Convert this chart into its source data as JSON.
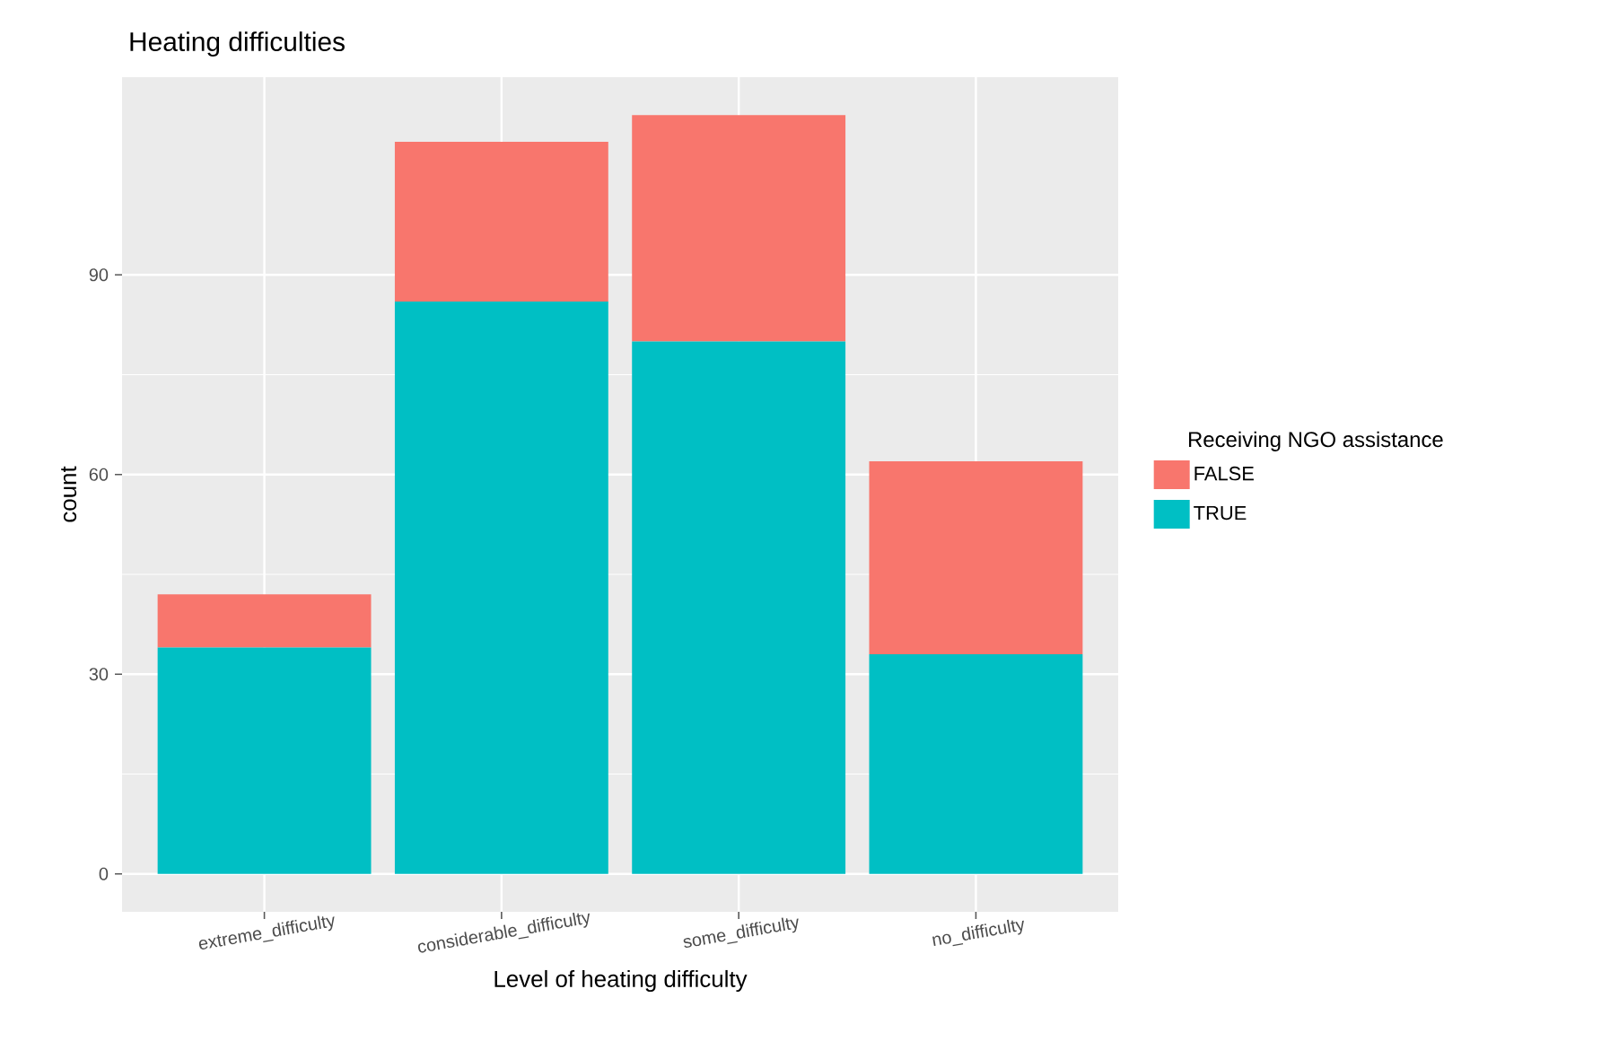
{
  "chart_data": {
    "type": "bar",
    "title": "Heating difficulties",
    "xlabel": "Level of heating difficulty",
    "ylabel": "count",
    "legend_title": "Receiving NGO assistance",
    "categories": [
      "extreme_difficulty",
      "considerable_difficulty",
      "some_difficulty",
      "no_difficulty"
    ],
    "stacked": true,
    "series": [
      {
        "name": "TRUE",
        "color": "#00bfc4",
        "values": [
          34,
          86,
          80,
          33
        ]
      },
      {
        "name": "FALSE",
        "color": "#f8766d",
        "values": [
          8,
          24,
          34,
          29
        ]
      }
    ],
    "ylim": [
      -5.7,
      119.7
    ],
    "yticks": [
      0,
      30,
      60,
      90
    ],
    "grid": true,
    "legend": "right"
  }
}
